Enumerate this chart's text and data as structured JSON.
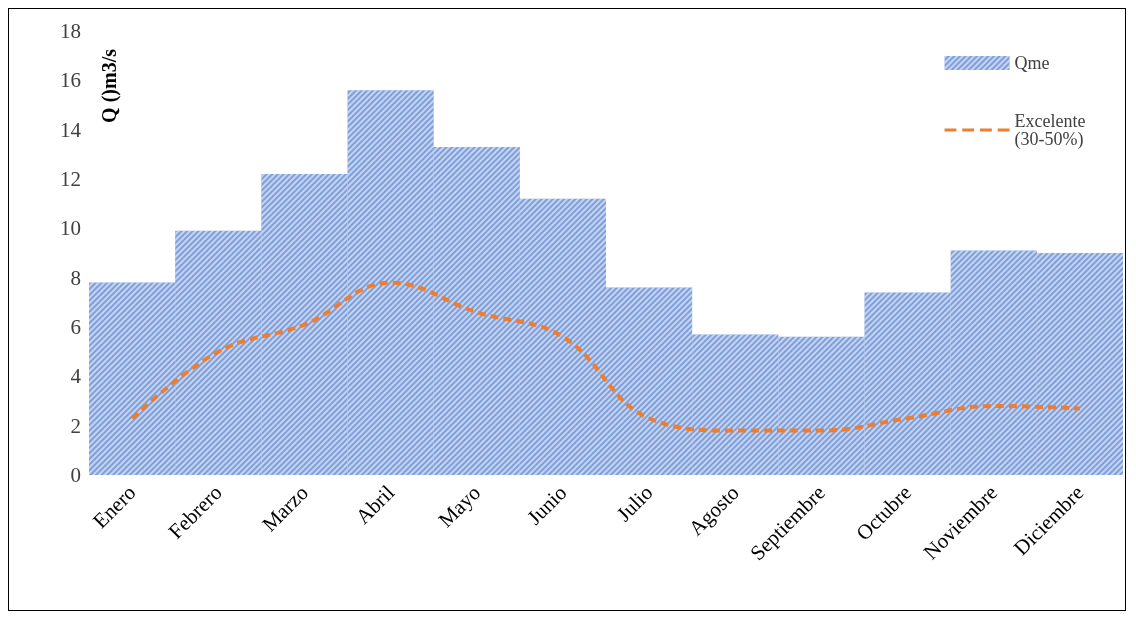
{
  "chart_data": {
    "type": "bar",
    "ylabel": "Q ()m3/s",
    "categories": [
      "Enero",
      "Febrero",
      "Marzo",
      "Abril",
      "Mayo",
      "Junio",
      "Julio",
      "Agosto",
      "Septiembre",
      "Octubre",
      "Noviembre",
      "Diciembre"
    ],
    "series": [
      {
        "name": "Qme",
        "color": "#7f9fdc",
        "values": [
          7.8,
          9.9,
          12.2,
          15.6,
          13.3,
          11.2,
          7.6,
          5.7,
          5.6,
          7.4,
          9.1,
          9.0
        ]
      },
      {
        "name": "Excelente (30-50%)",
        "type": "line",
        "color": "#ed7d31",
        "line_style": "dashed",
        "values": [
          2.3,
          5.0,
          6.1,
          7.8,
          6.6,
          5.6,
          2.3,
          1.8,
          1.8,
          2.3,
          2.8,
          2.7
        ]
      }
    ],
    "ylim": [
      0,
      18
    ],
    "yticks": [
      0,
      2,
      4,
      6,
      8,
      10,
      12,
      14,
      16,
      18
    ],
    "grid": false,
    "legend": "top right",
    "marker": "none"
  }
}
